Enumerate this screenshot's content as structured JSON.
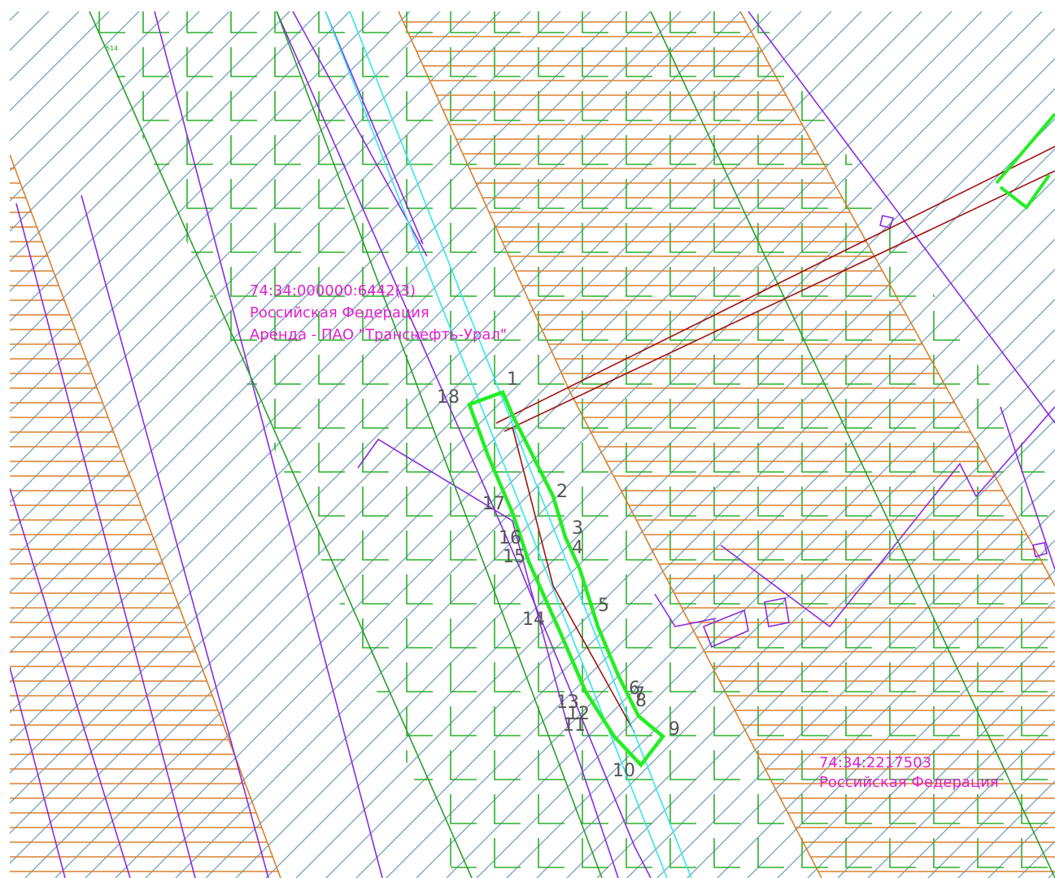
{
  "sheet_label": "514",
  "parcels": [
    {
      "number": "74:34:000000:6442(3)",
      "owner": "Российская Федерация",
      "lease": "Аренда - ПАО \"Транснефть-Урал\""
    },
    {
      "number": "74:34:2217503",
      "owner": "Российская Федерация"
    }
  ],
  "points": [
    "1",
    "2",
    "3",
    "4",
    "5",
    "6",
    "7",
    "8",
    "9",
    "10",
    "11",
    "12",
    "13",
    "14",
    "15",
    "16",
    "17",
    "18"
  ]
}
